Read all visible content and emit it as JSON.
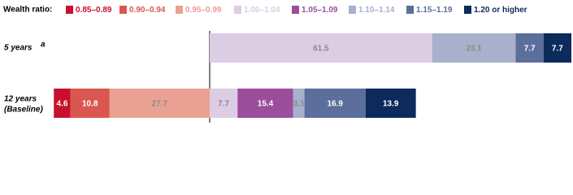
{
  "chart_data": {
    "type": "diverging-stacked-bar",
    "legend_title": "Wealth ratio:",
    "categories": [
      "5 years",
      "12 years"
    ],
    "category_superscripts": [
      "a",
      null
    ],
    "category_sublabels": [
      null,
      "(Baseline)"
    ],
    "series": [
      {
        "name": "0.85–0.89",
        "color": "#c8102e",
        "values": [
          null,
          4.6
        ]
      },
      {
        "name": "0.90–0.94",
        "color": "#d9574f",
        "values": [
          null,
          10.8
        ]
      },
      {
        "name": "0.95–0.99",
        "color": "#e9a193",
        "values": [
          null,
          27.7
        ]
      },
      {
        "name": "1.00–1.04",
        "color": "#dccde5",
        "values": [
          61.5,
          7.7
        ]
      },
      {
        "name": "1.05–1.09",
        "color": "#9a4e9c",
        "values": [
          null,
          15.4
        ]
      },
      {
        "name": "1.10–1.14",
        "color": "#a9b0cb",
        "values": [
          23.1,
          3.1
        ]
      },
      {
        "name": "1.15–1.19",
        "color": "#5c6e9b",
        "values": [
          7.7,
          16.9
        ]
      },
      {
        "name": "1.20 or higher",
        "color": "#0c2a5c",
        "values": [
          7.7,
          13.9
        ]
      }
    ]
  }
}
